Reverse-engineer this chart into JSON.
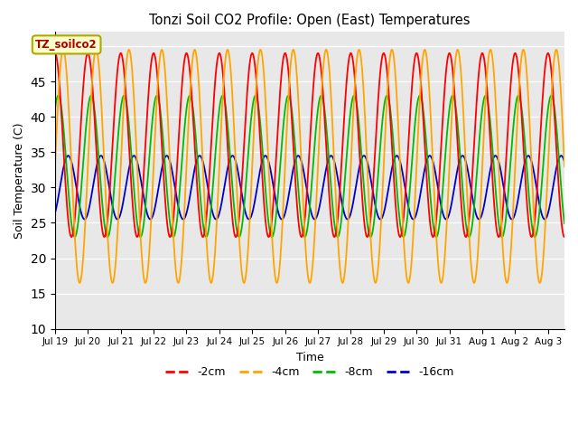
{
  "title": "Tonzi Soil CO2 Profile: Open (East) Temperatures",
  "xlabel": "Time",
  "ylabel": "Soil Temperature (C)",
  "ylim": [
    10,
    52
  ],
  "yticks": [
    10,
    15,
    20,
    25,
    30,
    35,
    40,
    45,
    50
  ],
  "xtick_labels": [
    "Jul 19",
    "Jul 20",
    "Jul 21",
    "Jul 22",
    "Jul 23",
    "Jul 24",
    "Jul 25",
    "Jul 26",
    "Jul 27",
    "Jul 28",
    "Jul 29",
    "Jul 30",
    "Jul 31",
    "Aug 1",
    "Aug 2",
    "Aug 3"
  ],
  "series": [
    {
      "label": "-2cm",
      "color": "#ff0000",
      "amplitude": 13.0,
      "mean": 36.0,
      "phase": 0.25
    },
    {
      "label": "-4cm",
      "color": "#ffa500",
      "amplitude": 16.5,
      "mean": 33.0,
      "phase": 0.0
    },
    {
      "label": "-8cm",
      "color": "#00bb00",
      "amplitude": 10.0,
      "mean": 33.0,
      "phase": 0.15
    },
    {
      "label": "-16cm",
      "color": "#0000cc",
      "amplitude": 4.5,
      "mean": 30.0,
      "phase": -0.15
    }
  ],
  "annotation_text": "TZ_soilco2",
  "background_color": "#e8e8e8",
  "legend_dash_colors": [
    "#ff0000",
    "#ffa500",
    "#00bb00",
    "#0000cc"
  ],
  "legend_labels": [
    "-2cm",
    "-4cm",
    "-8cm",
    "-16cm"
  ],
  "n_points": 2000,
  "period_days": 1.0,
  "total_days": 15.5
}
